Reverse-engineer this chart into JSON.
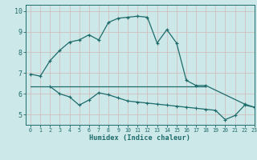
{
  "background_color": "#cde8e8",
  "grid_color": "#b8d4d4",
  "line_color": "#1e6b6b",
  "xlabel": "Humidex (Indice chaleur)",
  "xlim": [
    -0.5,
    23
  ],
  "ylim": [
    4.5,
    10.3
  ],
  "yticks": [
    5,
    6,
    7,
    8,
    9,
    10
  ],
  "xticks": [
    0,
    1,
    2,
    3,
    4,
    5,
    6,
    7,
    8,
    9,
    10,
    11,
    12,
    13,
    14,
    15,
    16,
    17,
    18,
    19,
    20,
    21,
    22,
    23
  ],
  "series1_x": [
    0,
    1,
    2,
    3,
    4,
    5,
    6,
    7,
    8,
    9,
    10,
    11,
    12,
    13,
    14,
    15,
    16,
    17,
    18,
    22,
    23
  ],
  "series1_y": [
    6.95,
    6.85,
    7.6,
    8.1,
    8.5,
    8.6,
    8.85,
    8.6,
    9.45,
    9.65,
    9.7,
    9.75,
    9.7,
    8.45,
    9.1,
    8.45,
    6.65,
    6.4,
    6.4,
    5.5,
    5.35
  ],
  "series2_x": [
    2,
    3,
    4,
    5,
    6,
    7,
    8,
    9,
    10,
    11,
    12,
    13,
    14,
    15,
    16,
    17,
    18,
    19,
    20,
    21,
    22,
    23
  ],
  "series2_y": [
    6.35,
    6.0,
    5.85,
    5.45,
    5.7,
    6.05,
    5.95,
    5.8,
    5.65,
    5.6,
    5.55,
    5.5,
    5.45,
    5.4,
    5.35,
    5.3,
    5.25,
    5.2,
    4.75,
    4.95,
    5.45,
    5.35
  ],
  "series3_x": [
    0,
    18
  ],
  "series3_y": [
    6.35,
    6.35
  ],
  "series1_marker_x": [
    0,
    1,
    2,
    3,
    4,
    5,
    6,
    7,
    8,
    9,
    10,
    11,
    12,
    13,
    14,
    15,
    16,
    17,
    18,
    22,
    23
  ],
  "series1_marker_y": [
    6.95,
    6.85,
    7.6,
    8.1,
    8.5,
    8.6,
    8.85,
    8.6,
    9.45,
    9.65,
    9.7,
    9.75,
    9.7,
    8.45,
    9.1,
    8.45,
    6.65,
    6.4,
    6.4,
    5.5,
    5.35
  ]
}
